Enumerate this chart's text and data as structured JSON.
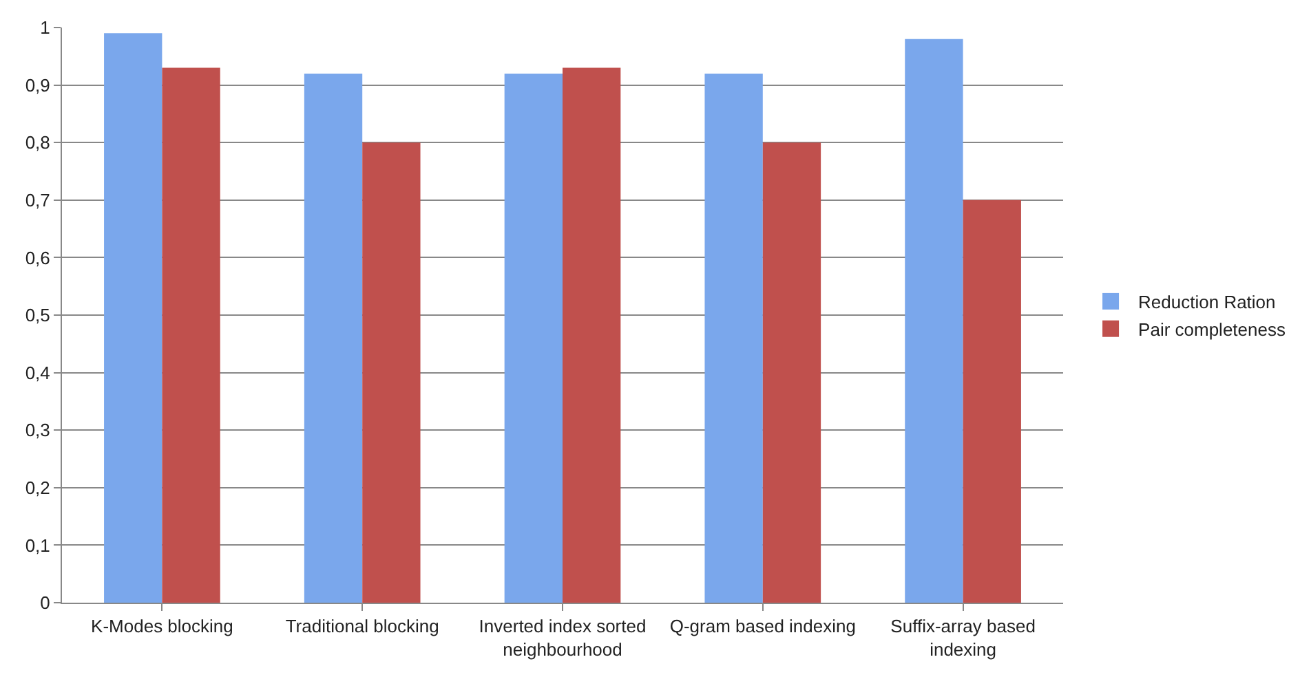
{
  "chart_data": {
    "type": "bar",
    "categories": [
      "K-Modes blocking",
      "Traditional blocking",
      "Inverted index sorted neighbourhood",
      "Q-gram based indexing",
      "Suffix-array based indexing"
    ],
    "series": [
      {
        "name": "Reduction Ration",
        "color": "#7aa7ec",
        "values": [
          0.99,
          0.92,
          0.92,
          0.92,
          0.98
        ]
      },
      {
        "name": "Pair completeness",
        "color": "#c0504d",
        "values": [
          0.93,
          0.8,
          0.93,
          0.8,
          0.7
        ]
      }
    ],
    "ylim": [
      0,
      1
    ],
    "yticks": [
      {
        "value": 0,
        "label": "0"
      },
      {
        "value": 0.1,
        "label": "0,1"
      },
      {
        "value": 0.2,
        "label": "0,2"
      },
      {
        "value": 0.3,
        "label": "0,3"
      },
      {
        "value": 0.4,
        "label": "0,4"
      },
      {
        "value": 0.5,
        "label": "0,5"
      },
      {
        "value": 0.6,
        "label": "0,6"
      },
      {
        "value": 0.7,
        "label": "0,7"
      },
      {
        "value": 0.8,
        "label": "0,8"
      },
      {
        "value": 0.9,
        "label": "0,9"
      },
      {
        "value": 1,
        "label": "1"
      }
    ],
    "grid": "y",
    "legend": "right"
  }
}
